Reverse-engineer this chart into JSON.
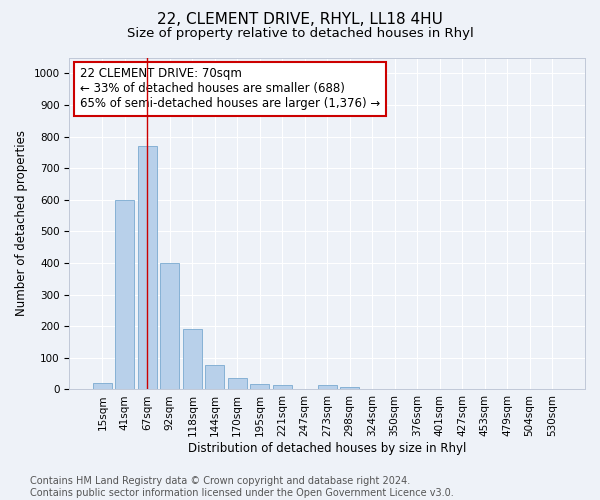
{
  "title1": "22, CLEMENT DRIVE, RHYL, LL18 4HU",
  "title2": "Size of property relative to detached houses in Rhyl",
  "xlabel": "Distribution of detached houses by size in Rhyl",
  "ylabel": "Number of detached properties",
  "bar_labels": [
    "15sqm",
    "41sqm",
    "67sqm",
    "92sqm",
    "118sqm",
    "144sqm",
    "170sqm",
    "195sqm",
    "221sqm",
    "247sqm",
    "273sqm",
    "298sqm",
    "324sqm",
    "350sqm",
    "376sqm",
    "401sqm",
    "427sqm",
    "453sqm",
    "479sqm",
    "504sqm",
    "530sqm"
  ],
  "bar_values": [
    20,
    600,
    770,
    400,
    190,
    78,
    35,
    18,
    13,
    0,
    13,
    8,
    0,
    0,
    0,
    0,
    0,
    0,
    0,
    0,
    0
  ],
  "bar_color": "#b8d0ea",
  "bar_edge_color": "#7aaad0",
  "vline_x": 2.0,
  "vline_color": "#cc0000",
  "annotation_text": "22 CLEMENT DRIVE: 70sqm\n← 33% of detached houses are smaller (688)\n65% of semi-detached houses are larger (1,376) →",
  "annotation_box_color": "#ffffff",
  "annotation_box_edge_color": "#cc0000",
  "ylim": [
    0,
    1050
  ],
  "yticks": [
    0,
    100,
    200,
    300,
    400,
    500,
    600,
    700,
    800,
    900,
    1000
  ],
  "bg_color": "#eef2f8",
  "grid_color": "#ffffff",
  "footer_text": "Contains HM Land Registry data © Crown copyright and database right 2024.\nContains public sector information licensed under the Open Government Licence v3.0.",
  "title1_fontsize": 11,
  "title2_fontsize": 9.5,
  "annotation_fontsize": 8.5,
  "ylabel_fontsize": 8.5,
  "xlabel_fontsize": 8.5,
  "footer_fontsize": 7,
  "tick_fontsize": 7.5
}
